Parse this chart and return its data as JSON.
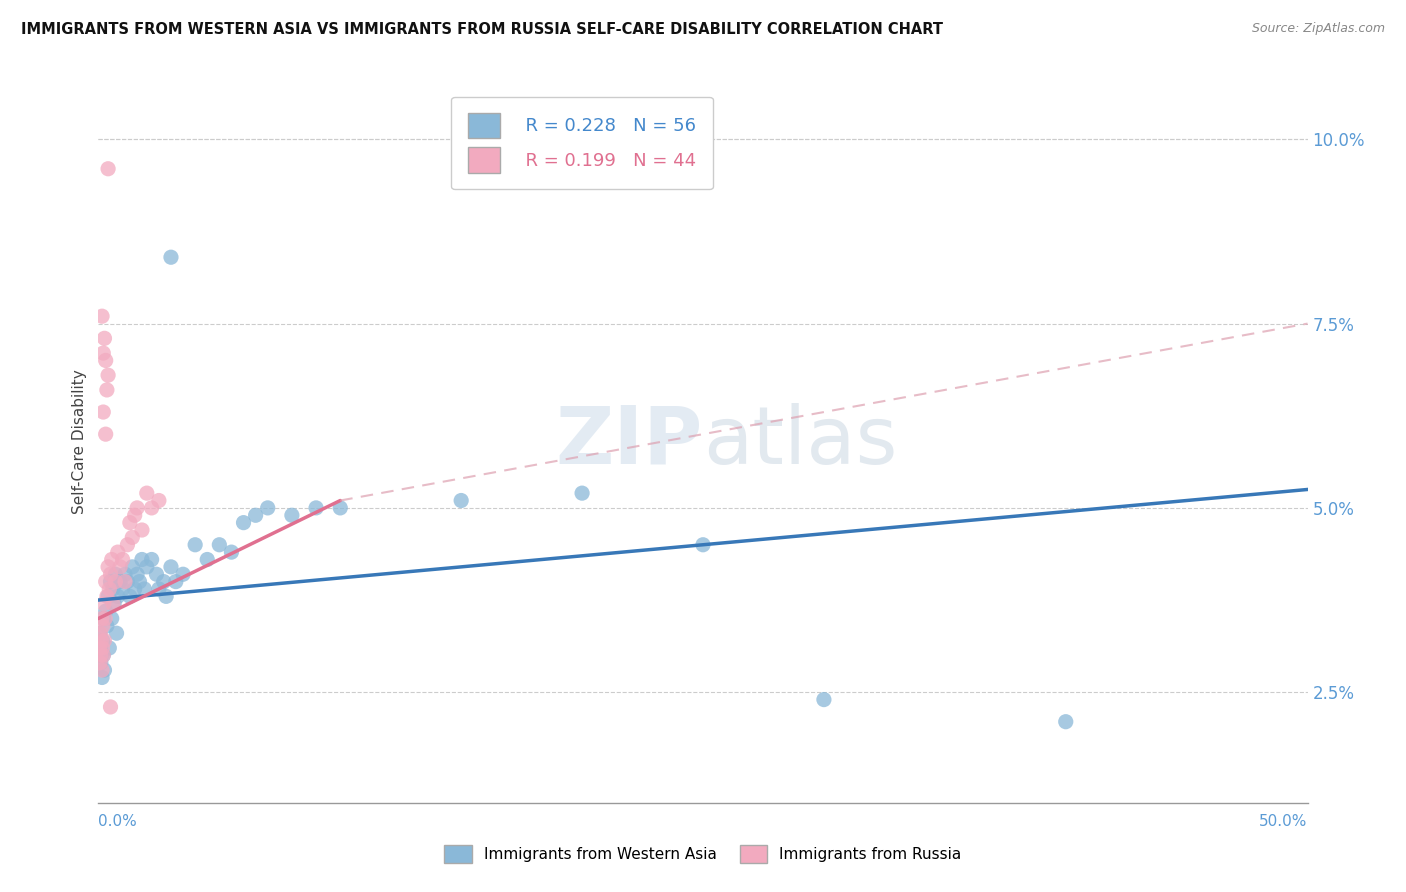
{
  "title": "IMMIGRANTS FROM WESTERN ASIA VS IMMIGRANTS FROM RUSSIA SELF-CARE DISABILITY CORRELATION CHART",
  "source": "Source: ZipAtlas.com",
  "ylabel": "Self-Care Disability",
  "ytick_values": [
    2.5,
    5.0,
    7.5,
    10.0
  ],
  "xlim": [
    0.0,
    50.0
  ],
  "ylim": [
    1.0,
    10.8
  ],
  "legend_r_blue": "R = 0.228",
  "legend_n_blue": "N = 56",
  "legend_r_pink": "R = 0.199",
  "legend_n_pink": "N = 44",
  "color_blue": "#8AB8D8",
  "color_pink": "#F2AABF",
  "trendline_blue_slope": 0.03,
  "trendline_blue_intercept": 3.75,
  "trendline_pink_solid_x0": 0.0,
  "trendline_pink_solid_y0": 3.5,
  "trendline_pink_solid_x1": 10.0,
  "trendline_pink_solid_y1": 5.1,
  "trendline_pink_dashed_x0": 10.0,
  "trendline_pink_dashed_y0": 5.1,
  "trendline_pink_dashed_x1": 50.0,
  "trendline_pink_dashed_y1": 7.5,
  "watermark_text": "ZIPatlas",
  "background_color": "#ffffff",
  "grid_color": "#cccccc",
  "blue_points": [
    [
      0.05,
      3.3
    ],
    [
      0.08,
      3.1
    ],
    [
      0.1,
      2.9
    ],
    [
      0.12,
      3.0
    ],
    [
      0.15,
      2.7
    ],
    [
      0.18,
      3.2
    ],
    [
      0.2,
      3.0
    ],
    [
      0.22,
      3.5
    ],
    [
      0.25,
      2.8
    ],
    [
      0.3,
      3.6
    ],
    [
      0.35,
      3.4
    ],
    [
      0.4,
      3.8
    ],
    [
      0.45,
      3.1
    ],
    [
      0.5,
      4.0
    ],
    [
      0.55,
      3.5
    ],
    [
      0.6,
      3.9
    ],
    [
      0.65,
      3.7
    ],
    [
      0.7,
      4.1
    ],
    [
      0.75,
      3.3
    ],
    [
      0.8,
      3.8
    ],
    [
      0.9,
      4.0
    ],
    [
      1.0,
      3.9
    ],
    [
      1.1,
      4.1
    ],
    [
      1.2,
      4.0
    ],
    [
      1.3,
      3.8
    ],
    [
      1.4,
      4.2
    ],
    [
      1.5,
      3.9
    ],
    [
      1.6,
      4.1
    ],
    [
      1.7,
      4.0
    ],
    [
      1.8,
      4.3
    ],
    [
      1.9,
      3.9
    ],
    [
      2.0,
      4.2
    ],
    [
      2.2,
      4.3
    ],
    [
      2.4,
      4.1
    ],
    [
      2.5,
      3.9
    ],
    [
      2.7,
      4.0
    ],
    [
      2.8,
      3.8
    ],
    [
      3.0,
      4.2
    ],
    [
      3.2,
      4.0
    ],
    [
      3.5,
      4.1
    ],
    [
      4.0,
      4.5
    ],
    [
      4.5,
      4.3
    ],
    [
      5.0,
      4.5
    ],
    [
      5.5,
      4.4
    ],
    [
      6.0,
      4.8
    ],
    [
      6.5,
      4.9
    ],
    [
      7.0,
      5.0
    ],
    [
      8.0,
      4.9
    ],
    [
      9.0,
      5.0
    ],
    [
      10.0,
      5.0
    ],
    [
      15.0,
      5.1
    ],
    [
      20.0,
      5.2
    ],
    [
      25.0,
      4.5
    ],
    [
      30.0,
      2.4
    ],
    [
      40.0,
      2.1
    ],
    [
      3.0,
      8.4
    ]
  ],
  "pink_points": [
    [
      0.05,
      3.1
    ],
    [
      0.07,
      2.9
    ],
    [
      0.08,
      3.3
    ],
    [
      0.1,
      3.0
    ],
    [
      0.12,
      3.2
    ],
    [
      0.14,
      3.5
    ],
    [
      0.15,
      2.8
    ],
    [
      0.17,
      3.1
    ],
    [
      0.18,
      3.4
    ],
    [
      0.2,
      3.0
    ],
    [
      0.22,
      3.7
    ],
    [
      0.25,
      3.2
    ],
    [
      0.28,
      3.5
    ],
    [
      0.3,
      4.0
    ],
    [
      0.35,
      3.8
    ],
    [
      0.4,
      4.2
    ],
    [
      0.45,
      3.9
    ],
    [
      0.5,
      4.1
    ],
    [
      0.55,
      4.3
    ],
    [
      0.6,
      3.7
    ],
    [
      0.7,
      4.0
    ],
    [
      0.8,
      4.4
    ],
    [
      0.9,
      4.2
    ],
    [
      1.0,
      4.3
    ],
    [
      1.1,
      4.0
    ],
    [
      1.2,
      4.5
    ],
    [
      1.3,
      4.8
    ],
    [
      1.4,
      4.6
    ],
    [
      1.5,
      4.9
    ],
    [
      1.6,
      5.0
    ],
    [
      1.8,
      4.7
    ],
    [
      2.0,
      5.2
    ],
    [
      2.2,
      5.0
    ],
    [
      2.5,
      5.1
    ],
    [
      0.5,
      2.3
    ],
    [
      0.15,
      7.6
    ],
    [
      0.2,
      7.1
    ],
    [
      0.25,
      7.3
    ],
    [
      0.3,
      7.0
    ],
    [
      0.35,
      6.6
    ],
    [
      0.4,
      6.8
    ],
    [
      0.2,
      6.3
    ],
    [
      0.3,
      6.0
    ],
    [
      0.4,
      9.6
    ]
  ]
}
